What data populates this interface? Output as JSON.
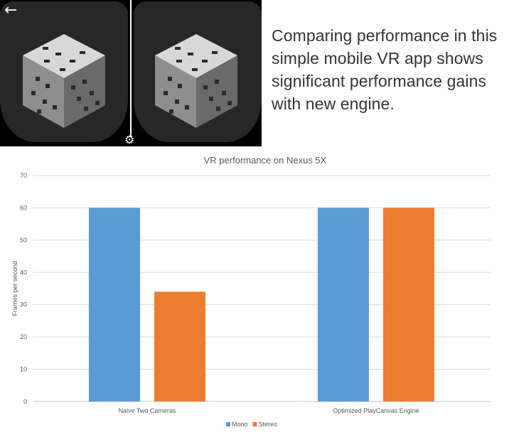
{
  "caption": "Comparing performance in this simple mobile VR app shows significant performance gains with new engine.",
  "icons": {
    "back": "back-arrow-icon",
    "settings": "gear-icon"
  },
  "chart_data": {
    "type": "bar",
    "title": "VR performance on Nexus 5X",
    "xlabel": "",
    "ylabel": "Frames per second",
    "categories": [
      "Naive Two Cameras",
      "Optimized PlayCanvas Engine"
    ],
    "series": [
      {
        "name": "Mono",
        "values": [
          60,
          60
        ],
        "color": "#5B9BD5"
      },
      {
        "name": "Stereo",
        "values": [
          34,
          60
        ],
        "color": "#ED7D31"
      }
    ],
    "ylim": [
      0,
      70
    ],
    "yticks": [
      0,
      10,
      20,
      30,
      40,
      50,
      60,
      70
    ],
    "grid": true,
    "legend": "bottom-center"
  }
}
